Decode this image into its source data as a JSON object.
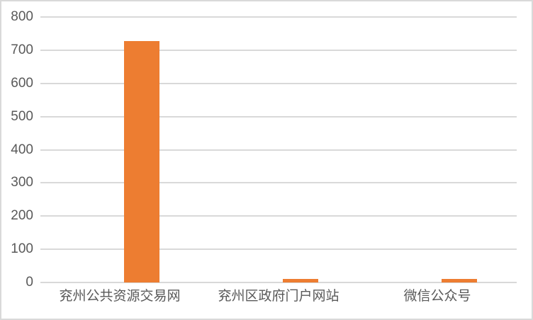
{
  "chart_data": {
    "type": "bar",
    "title": "",
    "xlabel": "",
    "ylabel": "",
    "categories": [
      "兖州公共资源交易网",
      "兖州区政府门户网站",
      "微信公众号"
    ],
    "values": [
      728,
      11,
      11
    ],
    "ylim": [
      0,
      800
    ],
    "yticks": [
      0,
      100,
      200,
      300,
      400,
      500,
      600,
      700,
      800
    ],
    "grid": true,
    "legend": false,
    "bar_color": "#ED7D31",
    "gridline_color": "#D9D9D9",
    "axis_text_color": "#595959",
    "background_color": "#FFFFFF",
    "border_color": "#D9D9D9"
  }
}
